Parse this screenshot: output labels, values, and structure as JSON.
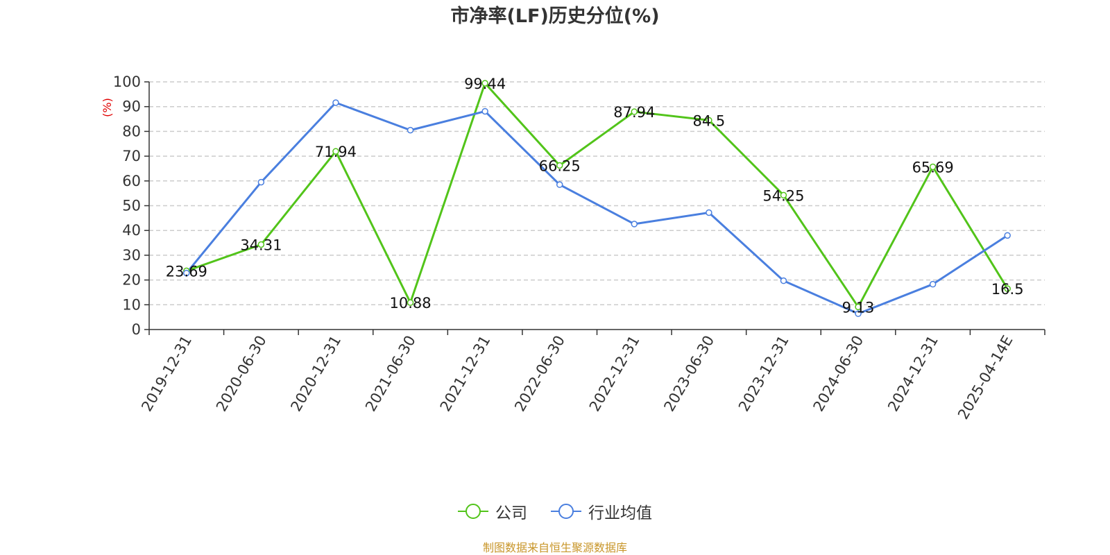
{
  "chart_data": {
    "type": "line",
    "title": "市净率(LF)历史分位(%)",
    "ylabel": "(%)",
    "xlabel": "",
    "ylim": [
      0,
      100
    ],
    "yticks": [
      0,
      10,
      20,
      30,
      40,
      50,
      60,
      70,
      80,
      90,
      100
    ],
    "categories": [
      "2019-12-31",
      "2020-06-30",
      "2020-12-31",
      "2021-06-30",
      "2021-12-31",
      "2022-06-30",
      "2022-12-31",
      "2023-06-30",
      "2023-12-31",
      "2024-06-30",
      "2024-12-31",
      "2025-04-14E"
    ],
    "series": [
      {
        "name": "公司",
        "color": "#52c41a",
        "show_labels": true,
        "values": [
          23.69,
          34.31,
          71.94,
          10.88,
          99.44,
          66.25,
          87.94,
          84.5,
          54.25,
          9.13,
          65.69,
          16.5
        ]
      },
      {
        "name": "行业均值",
        "color": "#4a7fdf",
        "show_labels": false,
        "values": [
          22.8,
          59.5,
          91.6,
          80.5,
          88.1,
          58.5,
          42.6,
          47.2,
          19.7,
          6.4,
          18.3,
          38.0
        ]
      }
    ],
    "grid": true,
    "legend_position": "bottom-center"
  },
  "footer": {
    "source": "制图数据来自恒生聚源数据库",
    "source_color": "#c8962a"
  },
  "unit_color": "#e00000"
}
